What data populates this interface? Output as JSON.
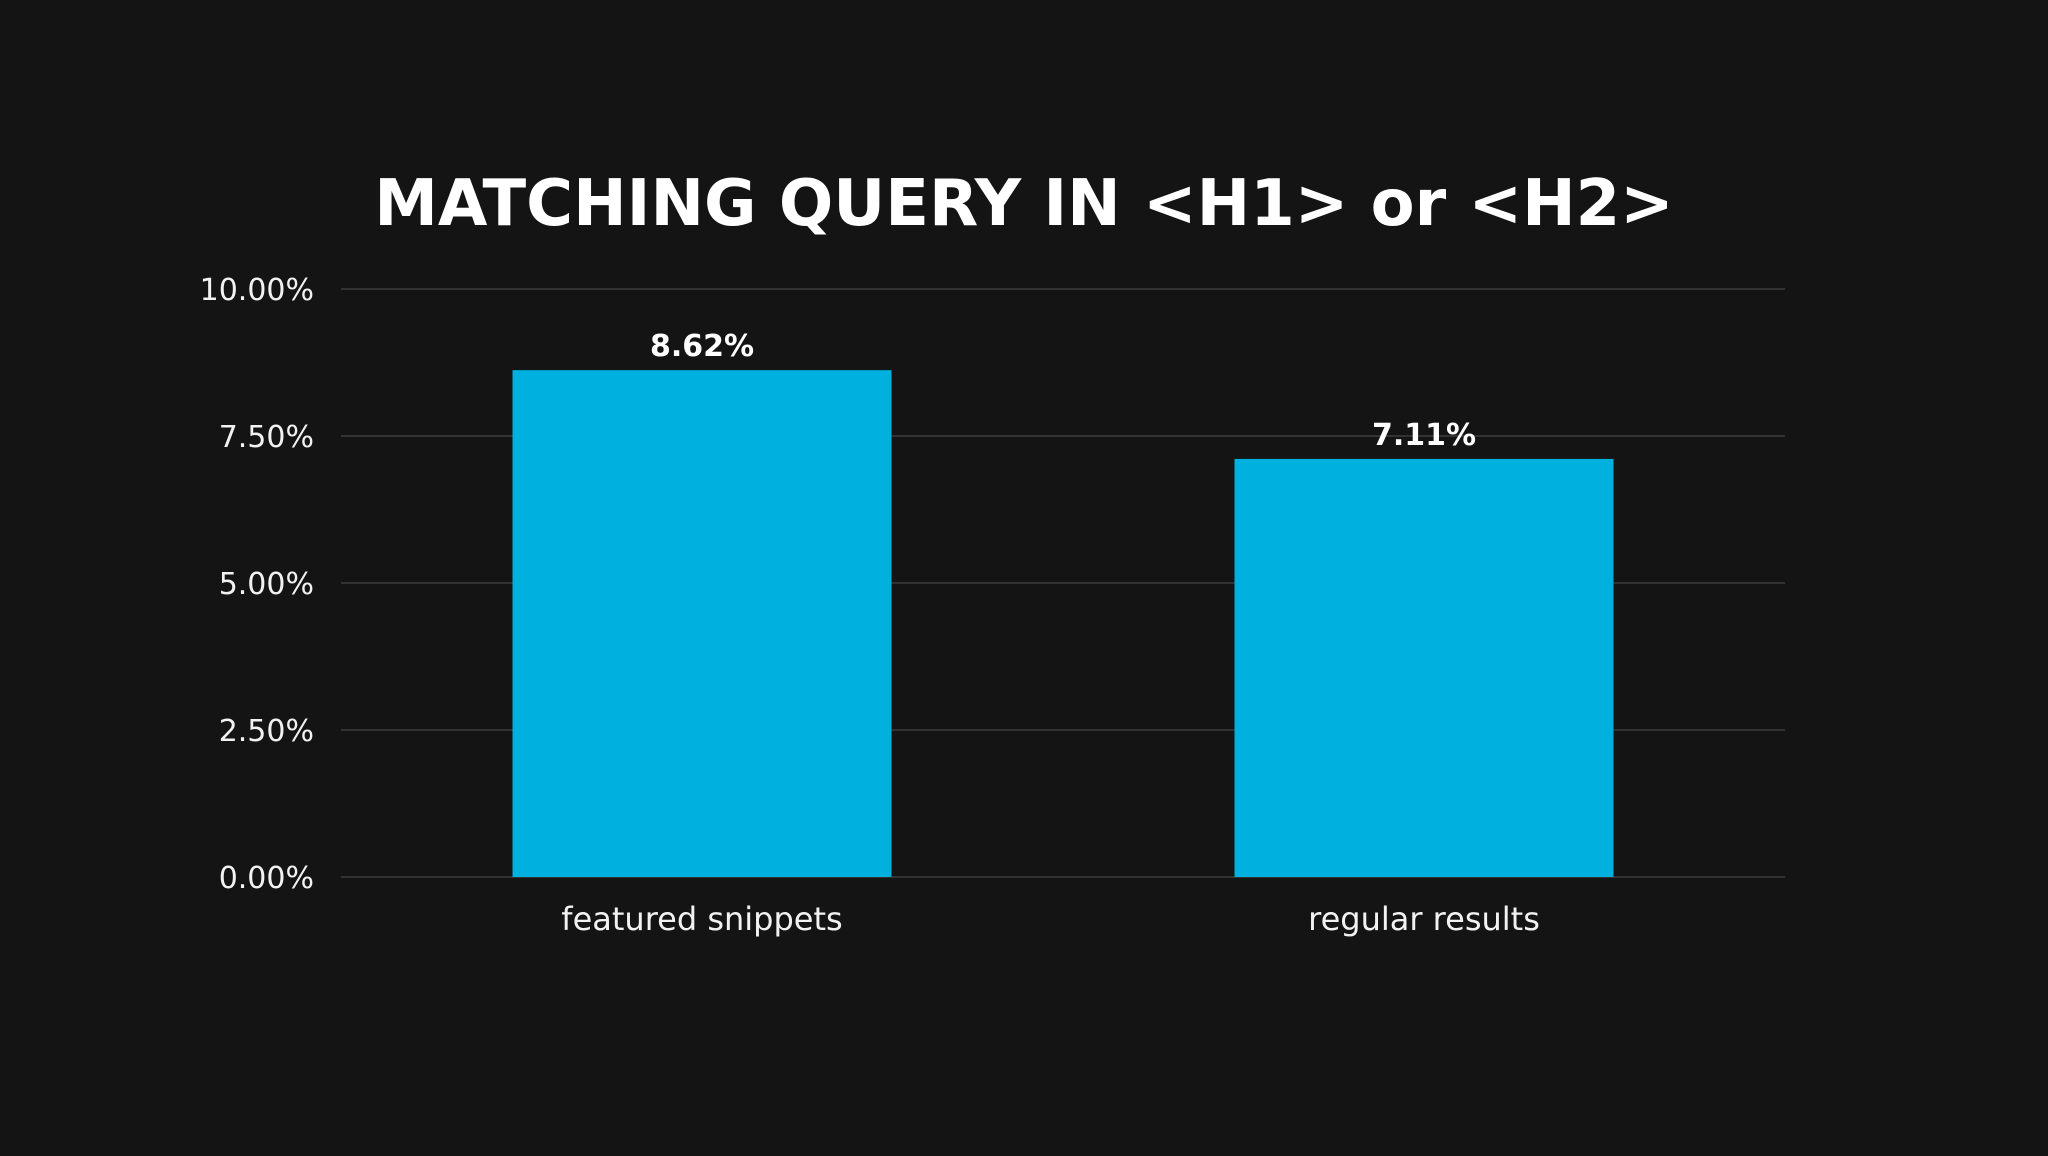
{
  "chart_data": {
    "type": "bar",
    "title": "MATCHING QUERY IN <H1> or <H2>",
    "xlabel": "",
    "ylabel": "",
    "categories": [
      "featured snippets",
      "regular results"
    ],
    "values": [
      8.62,
      7.11
    ],
    "data_labels": [
      "8.62%",
      "7.11%"
    ],
    "ylim": [
      0,
      10
    ],
    "yticks": [
      0,
      2.5,
      5,
      7.5,
      10
    ],
    "ytick_labels": [
      "0.00%",
      "2.50%",
      "5.00%",
      "7.50%",
      "10.00%"
    ],
    "grid": true,
    "legend": "none",
    "colors": {
      "background": "#141414",
      "bar": "#00b0de",
      "grid": "#3c3c3c",
      "text": "#ffffff"
    }
  }
}
